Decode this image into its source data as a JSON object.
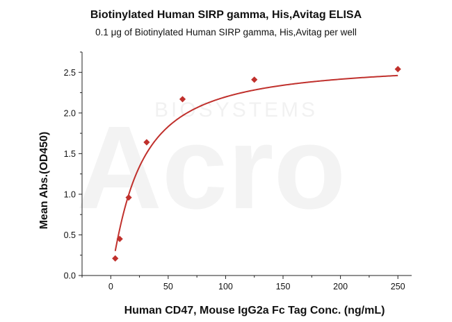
{
  "chart_data": {
    "type": "scatter",
    "title": "Biotinylated Human SIRP gamma, His,Avitag ELISA",
    "subtitle": "0.1 μg of Biotinylated Human SIRP gamma, His,Avitag per well",
    "xlabel": "Human CD47, Mouse IgG2a Fc Tag Conc. (ng/mL)",
    "ylabel": "Mean Abs.(OD450)",
    "xlim": [
      -25,
      262
    ],
    "ylim": [
      0,
      2.75
    ],
    "xticks": [
      "0",
      "50",
      "100",
      "150",
      "200",
      "250"
    ],
    "yticks": [
      "0.0",
      "0.5",
      "1.0",
      "1.5",
      "2.0",
      "2.5"
    ],
    "grid": false,
    "legend": "none",
    "watermark": {
      "logo_text": "Acro",
      "sub_text": "BIOSYSTEMS"
    },
    "series": [
      {
        "color": "#c0302c",
        "marker": "diamond",
        "x": [
          3.9,
          7.8,
          15.6,
          31.25,
          62.5,
          125,
          250
        ],
        "y": [
          0.21,
          0.45,
          0.96,
          1.64,
          2.17,
          2.41,
          2.54
        ]
      }
    ],
    "fit_curve": {
      "model": "4PL",
      "bottom": 0.02,
      "top": 2.63,
      "ec50": 24.5,
      "hill": 1.15,
      "x_range": [
        3.9,
        250
      ]
    }
  }
}
